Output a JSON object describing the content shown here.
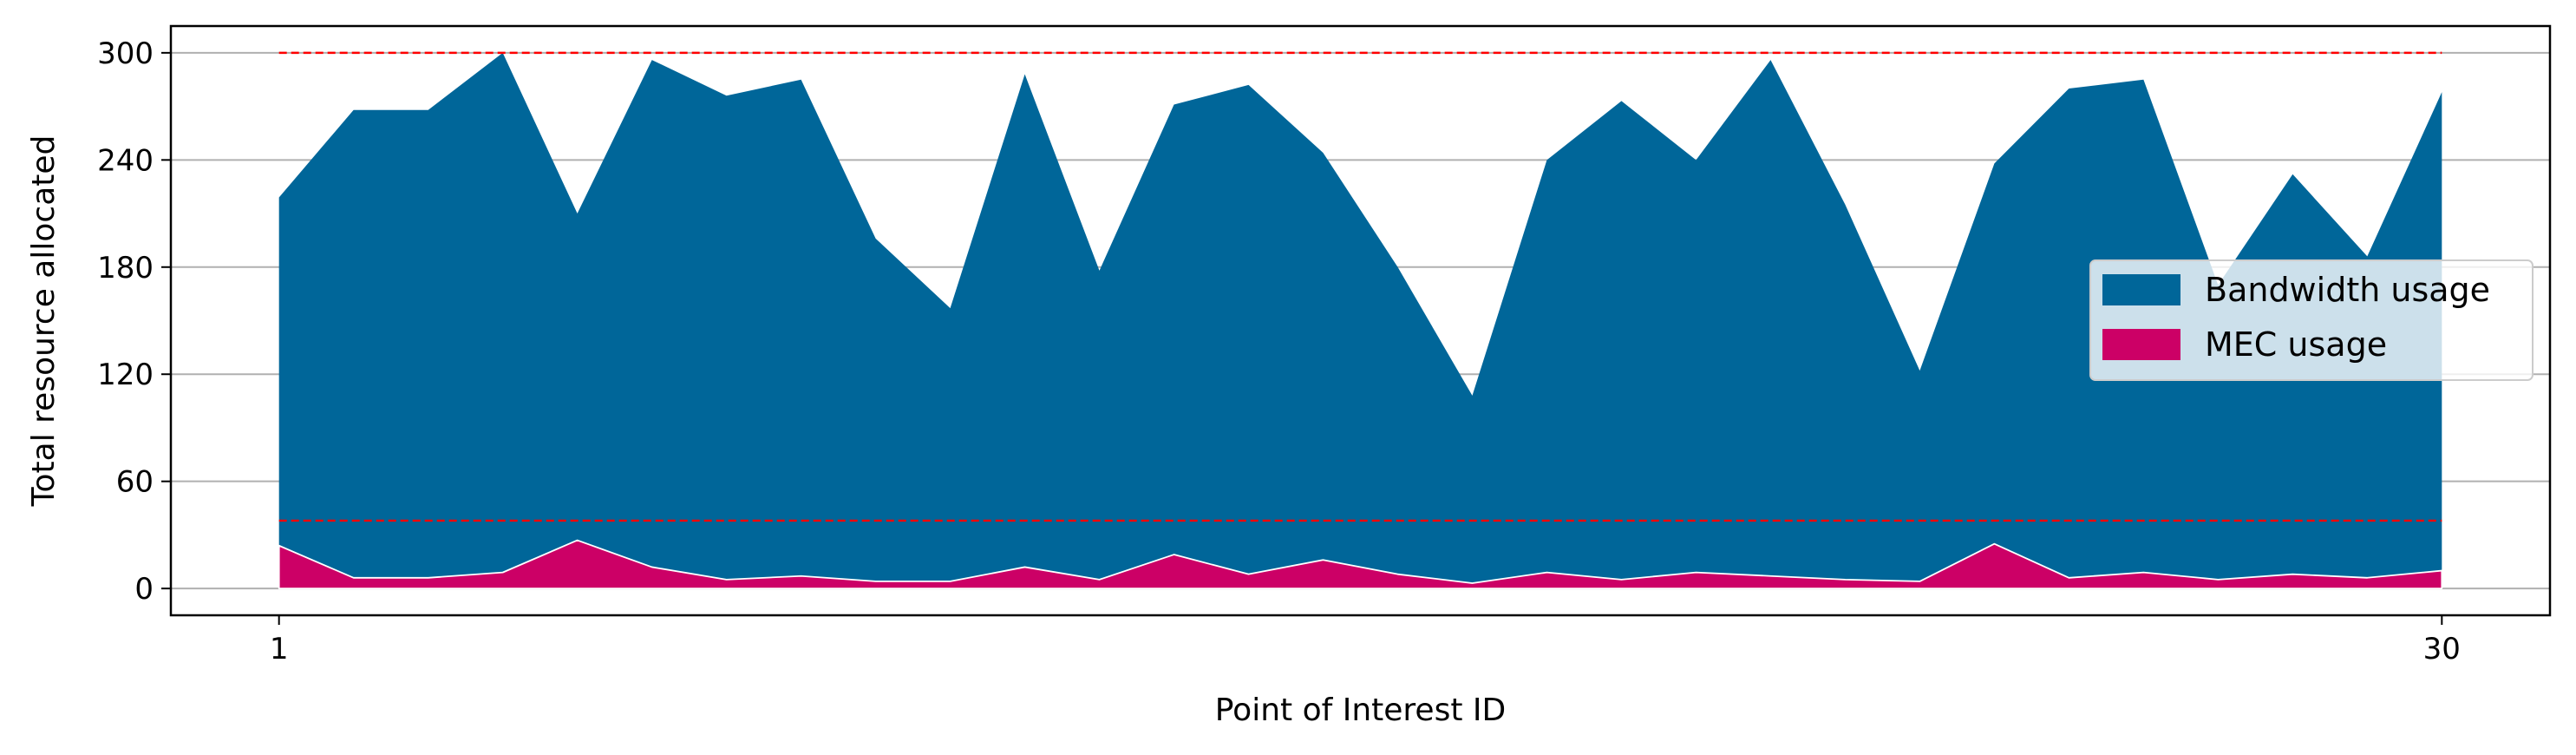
{
  "chart_data": {
    "type": "area",
    "stacked": false,
    "xlabel": "Point of Interest ID",
    "ylabel": "Total resource allocated",
    "x": [
      1,
      2,
      3,
      4,
      5,
      6,
      7,
      8,
      9,
      10,
      11,
      12,
      13,
      14,
      15,
      16,
      17,
      18,
      19,
      20,
      21,
      22,
      23,
      24,
      25,
      26,
      27,
      28,
      29,
      30
    ],
    "xticks": [
      1,
      30
    ],
    "xlim": [
      -0.45,
      31.45
    ],
    "yticks": [
      0,
      60,
      120,
      180,
      240,
      300
    ],
    "ylim": [
      -15,
      315
    ],
    "grid": "horizontal",
    "series": [
      {
        "name": "Bandwidth usage",
        "color": "#006699",
        "values": [
          219,
          268,
          268,
          300,
          210,
          296,
          276,
          285,
          196,
          157,
          288,
          178,
          271,
          282,
          244,
          180,
          108,
          240,
          273,
          240,
          296,
          215,
          122,
          238,
          280,
          285,
          170,
          232,
          186,
          278
        ]
      },
      {
        "name": "MEC usage",
        "color": "#cc0066",
        "values": [
          24,
          6,
          6,
          9,
          27,
          12,
          5,
          7,
          4,
          4,
          12,
          5,
          19,
          8,
          16,
          8,
          3,
          9,
          5,
          9,
          7,
          5,
          4,
          25,
          6,
          9,
          5,
          8,
          6,
          10
        ]
      }
    ],
    "reference_lines": [
      {
        "y": 300,
        "color": "#ff0000",
        "style": "dashed"
      },
      {
        "y": 38,
        "color": "#ff0000",
        "style": "dashed"
      }
    ],
    "legend": {
      "position": "right",
      "entries": [
        "Bandwidth usage",
        "MEC usage"
      ]
    }
  }
}
